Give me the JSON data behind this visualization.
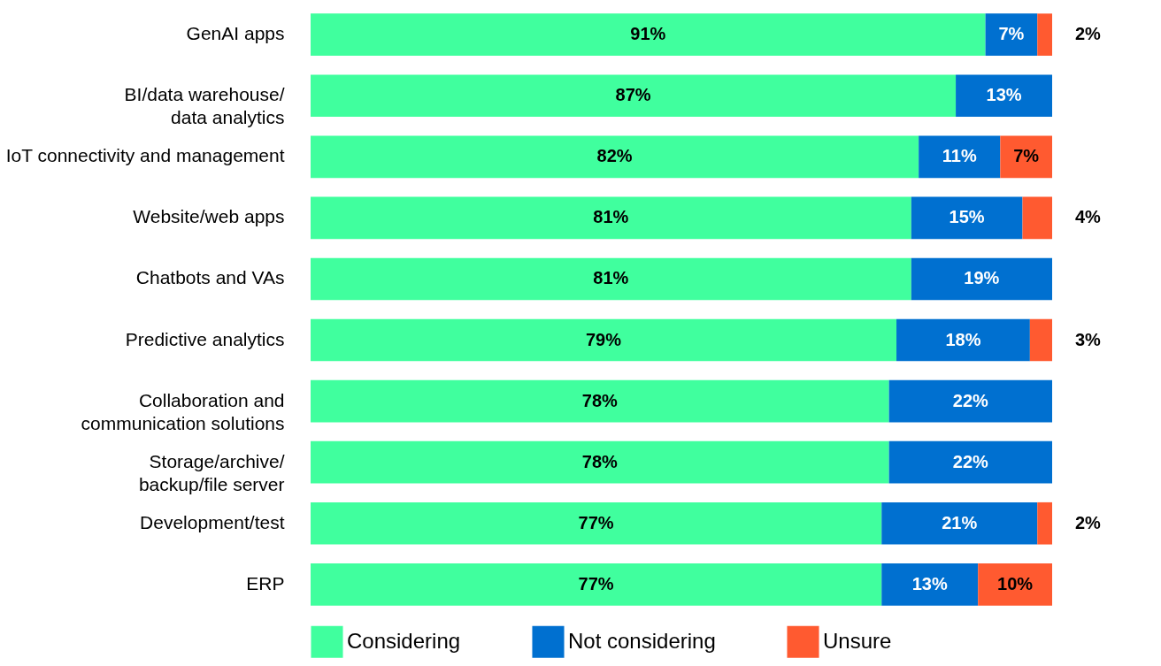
{
  "chart_data": {
    "type": "bar",
    "orientation": "horizontal",
    "stacked": true,
    "legend": "bottom",
    "categories": [
      "GenAI apps",
      "BI/data warehouse/data analytics",
      "IoT connectivity and management",
      "Website/web apps",
      "Chatbots and VAs",
      "Predictive analytics",
      "Collaboration and communication solutions",
      "Storage/archive/backup/file server",
      "Development/test",
      "ERP"
    ],
    "series": [
      {
        "name": "Considering",
        "color": "#40ff9e",
        "values": [
          91,
          87,
          82,
          81,
          81,
          79,
          78,
          78,
          77,
          77
        ],
        "value_labels": [
          "91%",
          "87%",
          "82%",
          "81%",
          "81%",
          "79%",
          "78%",
          "78%",
          "77%",
          "77%"
        ]
      },
      {
        "name": "Not considering",
        "color": "#0070d0",
        "values": [
          7,
          13,
          11,
          15,
          19,
          18,
          22,
          22,
          21,
          13
        ],
        "value_labels": [
          "7%",
          "13%",
          "11%",
          "15%",
          "19%",
          "18%",
          "22%",
          "22%",
          "21%",
          "13%"
        ]
      },
      {
        "name": "Unsure",
        "color": "#ff5a30",
        "values": [
          2,
          null,
          7,
          4,
          null,
          3,
          null,
          null,
          2,
          10
        ],
        "value_labels": [
          "2%",
          null,
          "7%",
          "4%",
          null,
          "3%",
          null,
          null,
          "2%",
          "10%"
        ]
      }
    ]
  }
}
